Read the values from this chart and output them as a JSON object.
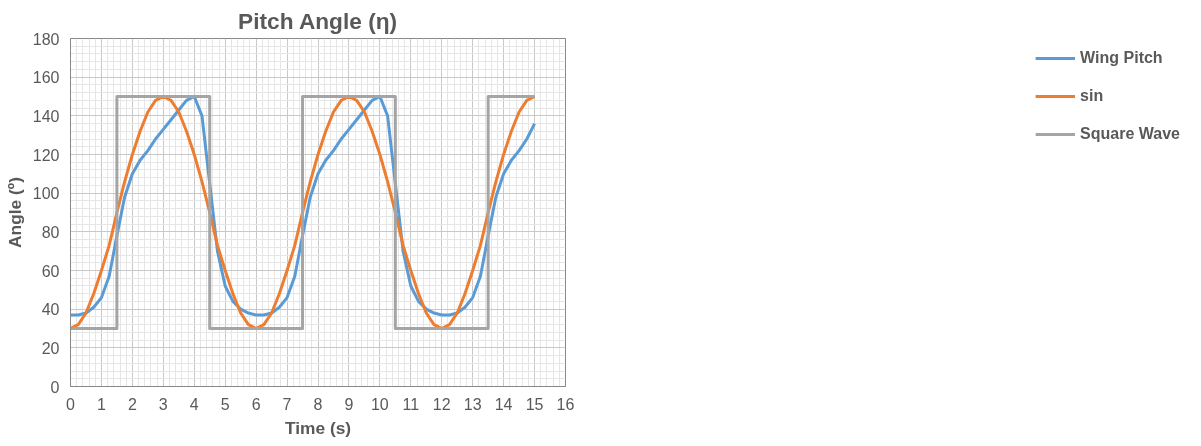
{
  "chart_data": {
    "type": "line",
    "title": "Pitch Angle (η)",
    "xlabel": "Time (s)",
    "ylabel": "Angle (º)",
    "x": [
      0,
      0.25,
      0.5,
      0.75,
      1,
      1.25,
      1.5,
      1.75,
      2,
      2.25,
      2.5,
      2.75,
      3,
      3.25,
      3.5,
      3.75,
      4,
      4.25,
      4.5,
      4.75,
      5,
      5.25,
      5.5,
      5.75,
      6,
      6.25,
      6.5,
      6.75,
      7,
      7.25,
      7.5,
      7.75,
      8,
      8.25,
      8.5,
      8.75,
      9,
      9.25,
      9.5,
      9.75,
      10,
      10.25,
      10.5,
      10.75,
      11,
      11.25,
      11.5,
      11.75,
      12,
      12.25,
      12.5,
      12.75,
      13,
      13.25,
      13.5,
      13.75,
      14,
      14.25,
      14.5,
      14.75,
      15
    ],
    "series": [
      {
        "name": "Wing Pitch",
        "color": "#5b9bd5",
        "values": [
          37,
          37,
          38,
          41,
          46,
          57,
          78,
          98,
          110,
          117,
          122,
          128,
          133,
          138,
          143,
          148,
          150,
          140,
          105,
          70,
          52,
          44,
          40,
          38,
          37,
          37,
          38,
          41,
          46,
          57,
          78,
          98,
          110,
          117,
          122,
          128,
          133,
          138,
          143,
          148,
          150,
          140,
          105,
          70,
          52,
          44,
          40,
          38,
          37,
          37,
          38,
          41,
          46,
          57,
          78,
          98,
          110,
          117,
          122,
          128,
          136
        ]
      },
      {
        "name": "sin",
        "color": "#ed7d31",
        "values": [
          30,
          32,
          38,
          48,
          60,
          73,
          90,
          106,
          120,
          132,
          142,
          148,
          150,
          148,
          142,
          132,
          120,
          106,
          90,
          73,
          60,
          48,
          38,
          32,
          30,
          32,
          38,
          48,
          60,
          73,
          90,
          106,
          120,
          132,
          142,
          148,
          150,
          148,
          142,
          132,
          120,
          106,
          90,
          73,
          60,
          48,
          38,
          32,
          30,
          32,
          38,
          48,
          60,
          73,
          90,
          106,
          120,
          132,
          142,
          148,
          150
        ]
      },
      {
        "name": "Square Wave",
        "color": "#a5a5a5",
        "x": [
          0,
          1.5,
          1.5,
          4.5,
          4.5,
          7.5,
          7.5,
          10.5,
          10.5,
          13.5,
          13.5,
          15
        ],
        "values": [
          30,
          30,
          150,
          150,
          30,
          30,
          150,
          150,
          30,
          30,
          150,
          150
        ]
      }
    ],
    "xlim": [
      0,
      16
    ],
    "xticks": [
      0,
      1,
      2,
      3,
      4,
      5,
      6,
      7,
      8,
      9,
      10,
      11,
      12,
      13,
      14,
      15,
      16
    ],
    "ylim": [
      0,
      180
    ],
    "yticks": [
      0,
      20,
      40,
      60,
      80,
      100,
      120,
      140,
      160,
      180
    ],
    "grid": true,
    "legend": "right",
    "marker": "none",
    "line_style": "solid"
  }
}
